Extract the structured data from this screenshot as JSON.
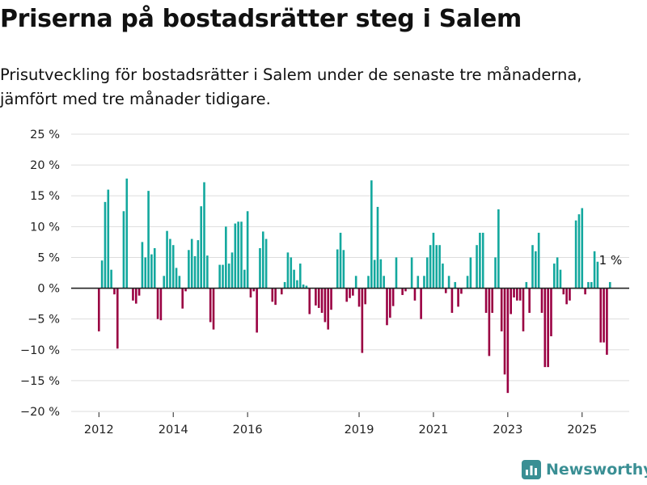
{
  "title": "Priserna på bostadsrätter steg i Salem",
  "subtitle": "Prisutveckling för bostadsrätter i Salem under de senaste tre månaderna, jämfört med tre månader tidigare.",
  "brand": {
    "name": "Newsworthy",
    "icon": "newsworthy-logo-icon"
  },
  "colors": {
    "positive": "#13a89e",
    "negative": "#9a0042",
    "grid": "#dddddd",
    "zero": "#222222",
    "brand": "#3a8f94"
  },
  "chart_data": {
    "type": "bar",
    "title": "",
    "xlabel": "",
    "ylabel": "",
    "ylim": [
      -20,
      25
    ],
    "yticks": [
      -20,
      -15,
      -10,
      -5,
      0,
      5,
      10,
      15,
      20,
      25
    ],
    "ytick_labels": [
      "−20 %",
      "−15 %",
      "−10 %",
      "−5 %",
      "0 %",
      "5 %",
      "10 %",
      "15 %",
      "20 %",
      "25 %"
    ],
    "xticks": [
      2012,
      2014,
      2016,
      2019,
      2021,
      2023,
      2025
    ],
    "grid": true,
    "legend": "none",
    "annotation": {
      "text": "1 %",
      "target": "last"
    },
    "x_start": "2012-01",
    "frequency": "monthly",
    "values": [
      -7,
      4.5,
      14,
      16,
      3,
      -1,
      -9.8,
      0,
      12.5,
      17.8,
      0,
      -2,
      -2.5,
      -1.2,
      7.5,
      5,
      15.8,
      5.5,
      6.5,
      -5,
      -5.2,
      2,
      9.3,
      8,
      7,
      3.3,
      2,
      -3.3,
      -0.5,
      6.2,
      8,
      5.2,
      7.8,
      13.3,
      17.2,
      5.3,
      -5.5,
      -6.7,
      0,
      3.8,
      3.8,
      10,
      4,
      5.8,
      10.5,
      10.8,
      10.8,
      3,
      12.5,
      -1.5,
      -0.5,
      -7.2,
      6.5,
      9.2,
      8,
      0,
      -2.2,
      -2.7,
      0,
      -1,
      1,
      5.8,
      5,
      3,
      1.3,
      4,
      0.6,
      0.4,
      -4.2,
      0,
      -2.8,
      -3.2,
      -4,
      -5.5,
      -6.7,
      -3.5,
      0,
      6.3,
      9,
      6.2,
      -2.2,
      -1.6,
      -1.2,
      2,
      -3,
      -10.5,
      -2.6,
      2,
      17.5,
      4.6,
      13.2,
      4.7,
      2,
      -6,
      -4.8,
      -2.9,
      5,
      0,
      -1.1,
      -0.5,
      0,
      5,
      -2,
      2,
      -5,
      2,
      5,
      7,
      9,
      7,
      7,
      4,
      -0.8,
      2,
      -4,
      1,
      -3,
      -0.9,
      0,
      2,
      5,
      0,
      7,
      9,
      9,
      -4,
      -11,
      -4,
      5,
      12.8,
      -7,
      -14,
      -17,
      -4.2,
      -1.5,
      -2,
      -2,
      -7,
      1,
      -4,
      7,
      6,
      9,
      -4,
      -12.8,
      -12.8,
      -7.8,
      4,
      5,
      3,
      -1,
      -2.6,
      -2,
      0,
      11,
      12,
      13,
      -1,
      1,
      1,
      6,
      4.3,
      -8.8,
      -8.8,
      -10.8,
      1
    ]
  }
}
